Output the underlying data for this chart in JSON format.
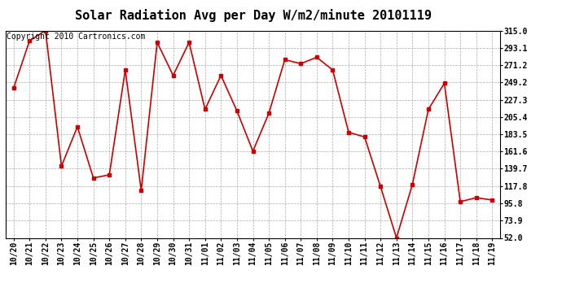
{
  "title": "Solar Radiation Avg per Day W/m2/minute 20101119",
  "copyright": "Copyright 2010 Cartronics.com",
  "dates": [
    "10/20",
    "10/21",
    "10/22",
    "10/23",
    "10/24",
    "10/25",
    "10/26",
    "10/27",
    "10/28",
    "10/29",
    "10/30",
    "10/31",
    "11/01",
    "11/02",
    "11/03",
    "11/04",
    "11/05",
    "11/06",
    "11/07",
    "11/08",
    "11/09",
    "11/10",
    "11/11",
    "11/12",
    "11/13",
    "11/14",
    "11/15",
    "11/16",
    "11/17",
    "11/18",
    "11/19"
  ],
  "values": [
    242.0,
    302.0,
    315.0,
    143.0,
    193.0,
    128.0,
    132.0,
    265.0,
    112.0,
    300.0,
    258.0,
    300.0,
    215.0,
    258.0,
    213.0,
    162.0,
    210.0,
    278.0,
    273.0,
    281.0,
    265.0,
    186.0,
    180.0,
    117.0,
    52.0,
    120.0,
    215.0,
    248.0,
    98.0,
    103.0,
    100.0
  ],
  "line_color": "#cc0000",
  "marker": "s",
  "marker_size": 3,
  "bg_color": "#ffffff",
  "grid_color": "#aaaaaa",
  "yticks": [
    52.0,
    73.9,
    95.8,
    117.8,
    139.7,
    161.6,
    183.5,
    205.4,
    227.3,
    249.2,
    271.2,
    293.1,
    315.0
  ],
  "ylim": [
    52.0,
    315.0
  ],
  "title_fontsize": 11,
  "tick_fontsize": 7,
  "copyright_fontsize": 7
}
